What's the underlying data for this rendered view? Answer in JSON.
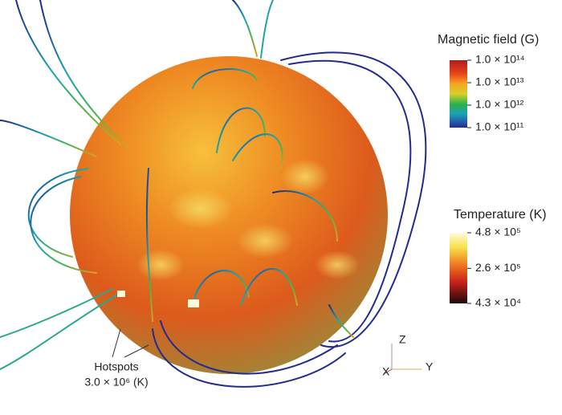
{
  "magnetic_colorbar": {
    "title": "Magnetic field (G)",
    "scale": "log",
    "range": [
      100000000000.0,
      100000000000000.0
    ],
    "ticks": [
      {
        "value": 100000000000000.0,
        "label": "1.0 × 10¹⁴"
      },
      {
        "value": 10000000000000.0,
        "label": "1.0 × 10¹³"
      },
      {
        "value": 1000000000000.0,
        "label": "1.0 × 10¹²"
      },
      {
        "value": 100000000000.0,
        "label": "1.0 × 10¹¹"
      }
    ]
  },
  "temperature_colorbar": {
    "title": "Temperature (K)",
    "scale": "linear",
    "range": [
      43000,
      480000
    ],
    "ticks": [
      {
        "value": 480000,
        "label": "4.8 × 10⁵"
      },
      {
        "value": 260000,
        "label": "2.6 × 10⁵"
      },
      {
        "value": 43000,
        "label": "4.3 × 10⁴"
      }
    ]
  },
  "annotation": {
    "label": "Hotspots",
    "value": "3.0 × 10⁶ (K)"
  },
  "axes": {
    "z": "Z",
    "y": "Y",
    "x": "X"
  }
}
